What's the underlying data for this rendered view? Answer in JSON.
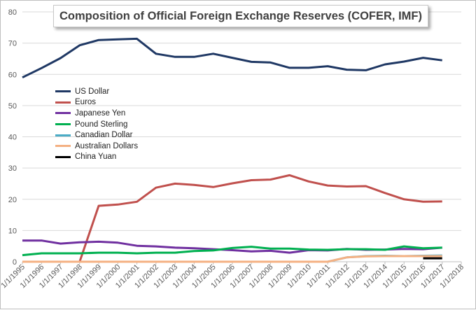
{
  "chart_data": {
    "type": "line",
    "title": "Composition  of Official Foreign Exchange Reserves (COFER, IMF)",
    "xlabel": "",
    "ylabel": "",
    "x": [
      "1/1/1995",
      "1/1/1996",
      "1/1/1997",
      "1/1/1998",
      "1/1/1999",
      "1/1/2000",
      "1/1/2001",
      "1/1/2002",
      "1/1/2003",
      "1/1/2004",
      "1/1/2005",
      "1/1/2006",
      "1/1/2007",
      "1/1/2008",
      "1/1/2009",
      "1/1/2010",
      "1/1/2011",
      "1/1/2012",
      "1/1/2013",
      "1/1/2014",
      "1/1/2015",
      "1/1/2016",
      "1/1/2017",
      "1/1/2018"
    ],
    "ylim": [
      0,
      80
    ],
    "yticks": [
      0,
      10,
      20,
      30,
      40,
      50,
      60,
      70,
      80
    ],
    "grid": true,
    "legend": "upper-left",
    "series": [
      {
        "name": "US Dollar",
        "color": "#1f3864",
        "points": [
          [
            0,
            59
          ],
          [
            1,
            62
          ],
          [
            2,
            65.2
          ],
          [
            3,
            69.3
          ],
          [
            4,
            71
          ],
          [
            5,
            71.2
          ],
          [
            6,
            71.4
          ],
          [
            7,
            66.6
          ],
          [
            8,
            65.6
          ],
          [
            9,
            65.6
          ],
          [
            10,
            66.6
          ],
          [
            11,
            65.3
          ],
          [
            12,
            64
          ],
          [
            13,
            63.8
          ],
          [
            14,
            62.1
          ],
          [
            15,
            62.1
          ],
          [
            16,
            62.6
          ],
          [
            17,
            61.5
          ],
          [
            18,
            61.3
          ],
          [
            19,
            63.2
          ],
          [
            20,
            64.1
          ],
          [
            21,
            65.3
          ],
          [
            22,
            64.5
          ]
        ]
      },
      {
        "name": "Euros",
        "color": "#c0504d",
        "points": [
          [
            3,
            0
          ],
          [
            4,
            17.9
          ],
          [
            5,
            18.3
          ],
          [
            6,
            19.2
          ],
          [
            7,
            23.7
          ],
          [
            8,
            25
          ],
          [
            9,
            24.6
          ],
          [
            10,
            23.9
          ],
          [
            11,
            25.1
          ],
          [
            12,
            26.1
          ],
          [
            13,
            26.3
          ],
          [
            14,
            27.7
          ],
          [
            15,
            25.7
          ],
          [
            16,
            24.4
          ],
          [
            17,
            24.1
          ],
          [
            18,
            24.2
          ],
          [
            19,
            22
          ],
          [
            20,
            20
          ],
          [
            21,
            19.2
          ],
          [
            22,
            19.3
          ]
        ]
      },
      {
        "name": "Japanese Yen",
        "color": "#7030a0",
        "points": [
          [
            0,
            6.8
          ],
          [
            1,
            6.8
          ],
          [
            2,
            5.8
          ],
          [
            3,
            6.2
          ],
          [
            4,
            6.4
          ],
          [
            5,
            6.1
          ],
          [
            6,
            5.1
          ],
          [
            7,
            4.9
          ],
          [
            8,
            4.5
          ],
          [
            9,
            4.3
          ],
          [
            10,
            4
          ],
          [
            11,
            3.7
          ],
          [
            12,
            3.3
          ],
          [
            13,
            3.5
          ],
          [
            14,
            2.9
          ],
          [
            15,
            3.7
          ],
          [
            16,
            3.6
          ],
          [
            17,
            4.1
          ],
          [
            18,
            3.8
          ],
          [
            19,
            3.9
          ],
          [
            20,
            4.1
          ],
          [
            21,
            4
          ],
          [
            22,
            4.5
          ]
        ]
      },
      {
        "name": "Pound Sterling",
        "color": "#00b050",
        "points": [
          [
            0,
            2.1
          ],
          [
            1,
            2.7
          ],
          [
            2,
            2.7
          ],
          [
            3,
            2.7
          ],
          [
            4,
            2.9
          ],
          [
            5,
            2.9
          ],
          [
            6,
            2.7
          ],
          [
            7,
            2.9
          ],
          [
            8,
            2.9
          ],
          [
            9,
            3.4
          ],
          [
            10,
            3.6
          ],
          [
            11,
            4.4
          ],
          [
            12,
            4.8
          ],
          [
            13,
            4.2
          ],
          [
            14,
            4.2
          ],
          [
            15,
            3.9
          ],
          [
            16,
            3.8
          ],
          [
            17,
            4
          ],
          [
            18,
            4
          ],
          [
            19,
            3.8
          ],
          [
            20,
            4.9
          ],
          [
            21,
            4.3
          ],
          [
            22,
            4.5
          ]
        ]
      },
      {
        "name": "Canadian Dollar",
        "color": "#4bacc6",
        "points": [
          [
            16,
            0
          ],
          [
            17,
            1.4
          ],
          [
            18,
            1.8
          ],
          [
            19,
            1.9
          ],
          [
            20,
            1.8
          ],
          [
            21,
            1.9
          ],
          [
            22,
            2
          ]
        ]
      },
      {
        "name": "Australian Dollars",
        "color": "#f4b183",
        "points": [
          [
            0,
            0
          ],
          [
            16,
            0
          ],
          [
            17,
            1.4
          ],
          [
            18,
            1.7
          ],
          [
            19,
            1.8
          ],
          [
            20,
            1.8
          ],
          [
            21,
            1.8
          ],
          [
            22,
            1.8
          ]
        ]
      },
      {
        "name": "China Yuan",
        "color": "#000000",
        "points": [
          [
            21,
            1.1
          ],
          [
            22,
            1.1
          ]
        ]
      }
    ]
  }
}
